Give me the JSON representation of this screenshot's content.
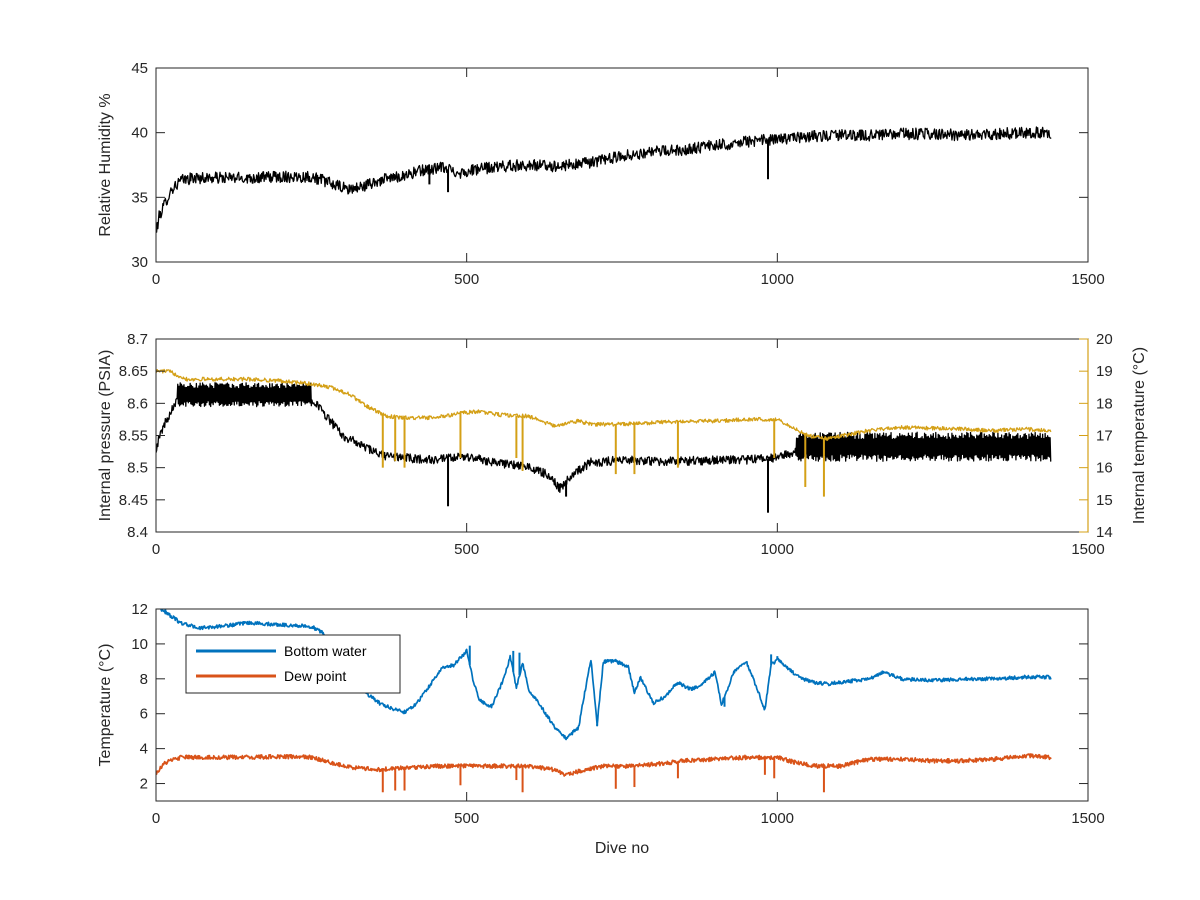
{
  "chart_data": [
    {
      "type": "line",
      "xlabel": "",
      "ylabel": "Relative Humidity %",
      "xlim": [
        0,
        1500
      ],
      "ylim": [
        30,
        45
      ],
      "xticks": [
        0,
        500,
        1000,
        1500
      ],
      "yticks": [
        30,
        35,
        40,
        45
      ],
      "grid": false,
      "series": [
        {
          "color": "#000000",
          "noise": 0.45,
          "points": [
            [
              0,
              32.2
            ],
            [
              5,
              33.5
            ],
            [
              15,
              34.6
            ],
            [
              25,
              35.6
            ],
            [
              40,
              36.3
            ],
            [
              60,
              36.5
            ],
            [
              100,
              36.5
            ],
            [
              150,
              36.5
            ],
            [
              200,
              36.6
            ],
            [
              250,
              36.6
            ],
            [
              270,
              36.3
            ],
            [
              290,
              35.9
            ],
            [
              310,
              35.6
            ],
            [
              330,
              35.8
            ],
            [
              360,
              36.3
            ],
            [
              400,
              36.7
            ],
            [
              430,
              37.1
            ],
            [
              460,
              37.3
            ],
            [
              490,
              36.9
            ],
            [
              520,
              37.2
            ],
            [
              560,
              37.4
            ],
            [
              600,
              37.5
            ],
            [
              650,
              37.4
            ],
            [
              700,
              37.7
            ],
            [
              750,
              38.2
            ],
            [
              800,
              38.5
            ],
            [
              850,
              38.7
            ],
            [
              900,
              39.0
            ],
            [
              950,
              39.3
            ],
            [
              1000,
              39.5
            ],
            [
              1050,
              39.7
            ],
            [
              1100,
              39.8
            ],
            [
              1150,
              39.8
            ],
            [
              1200,
              39.9
            ],
            [
              1250,
              39.9
            ],
            [
              1300,
              39.8
            ],
            [
              1350,
              39.9
            ],
            [
              1400,
              40.0
            ],
            [
              1440,
              40.0
            ]
          ],
          "spikes": [
            [
              470,
              35.4
            ],
            [
              985,
              36.4
            ],
            [
              440,
              36.0
            ]
          ]
        }
      ]
    },
    {
      "type": "line",
      "xlabel": "",
      "ylabel": "Internal pressure (PSIA)",
      "y2label": "Internal temperature (°C)",
      "xlim": [
        0,
        1500
      ],
      "ylim": [
        8.4,
        8.7
      ],
      "y2lim": [
        14,
        20
      ],
      "xticks": [
        0,
        500,
        1000,
        1500
      ],
      "yticks": [
        8.4,
        8.45,
        8.5,
        8.55,
        8.6,
        8.65,
        8.7
      ],
      "y2ticks": [
        14,
        15,
        16,
        17,
        18,
        19,
        20
      ],
      "grid": false,
      "series": [
        {
          "color": "#000000",
          "axis": "left",
          "noise": 0.007,
          "bands": [
            [
              35,
              250,
              8.595,
              8.632
            ],
            [
              1030,
              1440,
              8.51,
              8.555
            ]
          ],
          "points": [
            [
              0,
              8.53
            ],
            [
              10,
              8.56
            ],
            [
              25,
              8.59
            ],
            [
              35,
              8.61
            ],
            [
              100,
              8.615
            ],
            [
              200,
              8.615
            ],
            [
              250,
              8.61
            ],
            [
              270,
              8.585
            ],
            [
              300,
              8.55
            ],
            [
              330,
              8.535
            ],
            [
              360,
              8.52
            ],
            [
              400,
              8.515
            ],
            [
              450,
              8.512
            ],
            [
              500,
              8.517
            ],
            [
              550,
              8.508
            ],
            [
              600,
              8.5
            ],
            [
              630,
              8.49
            ],
            [
              650,
              8.468
            ],
            [
              670,
              8.49
            ],
            [
              700,
              8.508
            ],
            [
              750,
              8.512
            ],
            [
              800,
              8.51
            ],
            [
              850,
              8.51
            ],
            [
              900,
              8.512
            ],
            [
              950,
              8.512
            ],
            [
              1000,
              8.515
            ],
            [
              1030,
              8.525
            ],
            [
              1050,
              8.52
            ],
            [
              1080,
              8.5
            ],
            [
              1110,
              8.5
            ],
            [
              1150,
              8.515
            ],
            [
              1200,
              8.52
            ],
            [
              1300,
              8.525
            ],
            [
              1400,
              8.53
            ],
            [
              1440,
              8.535
            ]
          ],
          "spikes": [
            [
              470,
              8.44
            ],
            [
              985,
              8.43
            ],
            [
              660,
              8.455
            ]
          ]
        },
        {
          "color": "#D4A017",
          "axis": "right",
          "noise": 0.06,
          "points": [
            [
              0,
              19.0
            ],
            [
              20,
              19.0
            ],
            [
              50,
              18.75
            ],
            [
              100,
              18.75
            ],
            [
              150,
              18.75
            ],
            [
              200,
              18.7
            ],
            [
              250,
              18.6
            ],
            [
              280,
              18.5
            ],
            [
              310,
              18.3
            ],
            [
              340,
              17.9
            ],
            [
              370,
              17.6
            ],
            [
              400,
              17.55
            ],
            [
              450,
              17.55
            ],
            [
              490,
              17.7
            ],
            [
              520,
              17.75
            ],
            [
              550,
              17.65
            ],
            [
              600,
              17.6
            ],
            [
              640,
              17.3
            ],
            [
              680,
              17.45
            ],
            [
              700,
              17.35
            ],
            [
              750,
              17.35
            ],
            [
              800,
              17.4
            ],
            [
              850,
              17.45
            ],
            [
              900,
              17.45
            ],
            [
              950,
              17.5
            ],
            [
              1000,
              17.5
            ],
            [
              1030,
              17.2
            ],
            [
              1050,
              17.0
            ],
            [
              1080,
              16.9
            ],
            [
              1120,
              17.05
            ],
            [
              1160,
              17.2
            ],
            [
              1200,
              17.25
            ],
            [
              1300,
              17.2
            ],
            [
              1350,
              17.15
            ],
            [
              1400,
              17.2
            ],
            [
              1440,
              17.15
            ]
          ],
          "spikes": [
            [
              365,
              16.0
            ],
            [
              385,
              16.2
            ],
            [
              400,
              16.0
            ],
            [
              490,
              16.3
            ],
            [
              580,
              16.3
            ],
            [
              590,
              15.9
            ],
            [
              740,
              15.8
            ],
            [
              770,
              15.8
            ],
            [
              840,
              16.0
            ],
            [
              995,
              16.3
            ],
            [
              1045,
              15.4
            ],
            [
              1075,
              15.1
            ]
          ]
        }
      ]
    },
    {
      "type": "line",
      "xlabel": "Dive no",
      "ylabel": "Temperature (°C)",
      "xlim": [
        0,
        1500
      ],
      "ylim": [
        1,
        12
      ],
      "xticks": [
        0,
        500,
        1000,
        1500
      ],
      "yticks": [
        2,
        4,
        6,
        8,
        10,
        12
      ],
      "grid": false,
      "legend_position": "top-left",
      "series": [
        {
          "name": "Bottom water",
          "color": "#0072BD",
          "noise": 0.1,
          "points": [
            [
              0,
              12.2
            ],
            [
              20,
              11.7
            ],
            [
              40,
              11.2
            ],
            [
              70,
              10.9
            ],
            [
              100,
              11.0
            ],
            [
              150,
              11.2
            ],
            [
              200,
              11.1
            ],
            [
              250,
              11.0
            ],
            [
              270,
              10.6
            ],
            [
              290,
              8.2
            ],
            [
              310,
              7.8
            ],
            [
              330,
              7.4
            ],
            [
              360,
              6.6
            ],
            [
              380,
              6.3
            ],
            [
              400,
              6.1
            ],
            [
              420,
              6.6
            ],
            [
              440,
              7.6
            ],
            [
              460,
              8.6
            ],
            [
              480,
              8.8
            ],
            [
              500,
              9.6
            ],
            [
              510,
              8.0
            ],
            [
              520,
              6.8
            ],
            [
              540,
              6.4
            ],
            [
              560,
              8.0
            ],
            [
              570,
              9.3
            ],
            [
              580,
              7.5
            ],
            [
              590,
              8.9
            ],
            [
              600,
              7.4
            ],
            [
              620,
              6.4
            ],
            [
              640,
              5.3
            ],
            [
              660,
              4.6
            ],
            [
              680,
              5.2
            ],
            [
              690,
              7.2
            ],
            [
              700,
              9.1
            ],
            [
              710,
              5.4
            ],
            [
              720,
              9.0
            ],
            [
              740,
              9.0
            ],
            [
              760,
              8.7
            ],
            [
              770,
              7.2
            ],
            [
              780,
              8.1
            ],
            [
              800,
              6.6
            ],
            [
              820,
              7.0
            ],
            [
              840,
              7.8
            ],
            [
              860,
              7.4
            ],
            [
              880,
              7.7
            ],
            [
              900,
              8.4
            ],
            [
              910,
              6.5
            ],
            [
              930,
              8.4
            ],
            [
              950,
              9.0
            ],
            [
              970,
              7.2
            ],
            [
              980,
              6.2
            ],
            [
              990,
              8.8
            ],
            [
              1000,
              9.1
            ],
            [
              1020,
              8.5
            ],
            [
              1040,
              8.0
            ],
            [
              1060,
              7.8
            ],
            [
              1080,
              7.7
            ],
            [
              1100,
              7.8
            ],
            [
              1150,
              8.0
            ],
            [
              1170,
              8.4
            ],
            [
              1200,
              8.0
            ],
            [
              1250,
              7.9
            ],
            [
              1300,
              8.0
            ],
            [
              1350,
              8.0
            ],
            [
              1400,
              8.1
            ],
            [
              1440,
              8.1
            ]
          ],
          "spikes": [
            [
              15,
              12.2
            ],
            [
              505,
              9.9
            ],
            [
              575,
              9.6
            ],
            [
              585,
              9.5
            ],
            [
              710,
              5.3
            ],
            [
              915,
              6.4
            ],
            [
              990,
              9.4
            ],
            [
              1000,
              9.3
            ]
          ]
        },
        {
          "name": "Dew point",
          "color": "#D95319",
          "noise": 0.12,
          "points": [
            [
              0,
              2.6
            ],
            [
              15,
              3.2
            ],
            [
              40,
              3.5
            ],
            [
              100,
              3.5
            ],
            [
              150,
              3.5
            ],
            [
              200,
              3.55
            ],
            [
              250,
              3.5
            ],
            [
              280,
              3.2
            ],
            [
              320,
              2.9
            ],
            [
              360,
              2.8
            ],
            [
              400,
              2.9
            ],
            [
              450,
              3.0
            ],
            [
              500,
              3.0
            ],
            [
              550,
              3.0
            ],
            [
              600,
              3.0
            ],
            [
              640,
              2.8
            ],
            [
              660,
              2.5
            ],
            [
              690,
              2.8
            ],
            [
              720,
              3.0
            ],
            [
              760,
              3.0
            ],
            [
              800,
              3.1
            ],
            [
              850,
              3.3
            ],
            [
              900,
              3.4
            ],
            [
              950,
              3.5
            ],
            [
              1000,
              3.5
            ],
            [
              1030,
              3.2
            ],
            [
              1060,
              3.0
            ],
            [
              1100,
              3.0
            ],
            [
              1150,
              3.4
            ],
            [
              1200,
              3.4
            ],
            [
              1250,
              3.3
            ],
            [
              1300,
              3.3
            ],
            [
              1350,
              3.4
            ],
            [
              1400,
              3.6
            ],
            [
              1440,
              3.5
            ]
          ],
          "spikes": [
            [
              365,
              1.5
            ],
            [
              385,
              1.6
            ],
            [
              400,
              1.6
            ],
            [
              490,
              1.9
            ],
            [
              580,
              2.2
            ],
            [
              590,
              1.5
            ],
            [
              740,
              1.7
            ],
            [
              770,
              1.8
            ],
            [
              840,
              2.3
            ],
            [
              980,
              2.5
            ],
            [
              995,
              2.3
            ],
            [
              1075,
              1.5
            ]
          ]
        }
      ]
    }
  ]
}
